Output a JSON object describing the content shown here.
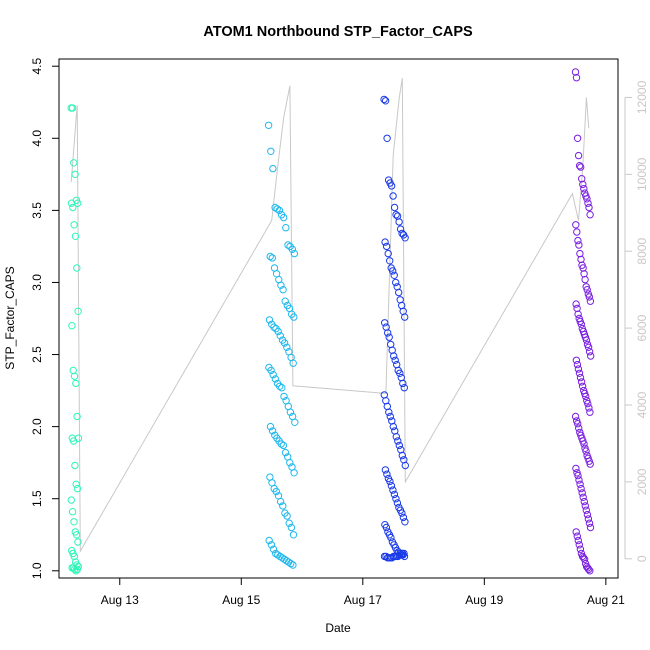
{
  "chart_data": {
    "type": "scatter",
    "title": "ATOM1 Northbound STP_Factor_CAPS",
    "xlabel": "Date",
    "ylabel": "STP_Factor_CAPS",
    "x_ticks": [
      "Aug 13",
      "Aug 15",
      "Aug 17",
      "Aug 19",
      "Aug 21"
    ],
    "x_tick_days": [
      13,
      15,
      17,
      19,
      21
    ],
    "xlim": [
      12.0,
      21.2
    ],
    "ylim": [
      0.95,
      4.55
    ],
    "y_ticks": [
      1.0,
      1.5,
      2.0,
      2.5,
      3.0,
      3.5,
      4.0,
      4.5
    ],
    "y_tick_labels": [
      "1.0",
      "1.5",
      "2.0",
      "2.5",
      "3.0",
      "3.5",
      "4.0",
      "4.5"
    ],
    "y2lim": [
      -500,
      13000
    ],
    "y2_ticks": [
      0,
      2000,
      4000,
      6000,
      8000,
      10000,
      12000
    ],
    "y2_tick_labels": [
      "0",
      "2000",
      "4000",
      "6000",
      "8000",
      "10000",
      "12000"
    ],
    "colors": {
      "series1": "#2ef5b8",
      "series2": "#1eb8ee",
      "series3": "#1a3ae8",
      "series4": "#7a1ee0",
      "secondary_line": "#c8c8c8",
      "frame": "#000000",
      "right_axis": "#c8c8c8"
    },
    "series": [
      {
        "axis": "left",
        "x_range": [
          12.2,
          12.32
        ],
        "values": [
          4.21,
          4.21,
          3.83,
          3.75,
          3.57,
          3.55,
          3.55,
          3.52,
          3.4,
          3.32,
          3.1,
          2.8,
          2.7,
          2.39,
          2.35,
          2.3,
          2.07,
          1.92,
          1.92,
          1.9,
          1.73,
          1.6,
          1.57,
          1.49,
          1.41,
          1.34,
          1.27,
          1.25,
          1.2,
          1.14,
          1.12,
          1.1,
          1.06,
          1.04,
          1.03,
          1.02,
          1.02,
          1.01,
          1.0,
          1.01
        ]
      },
      {
        "axis": "left",
        "x_range": [
          15.45,
          15.88
        ],
        "values": [
          4.09,
          3.91,
          3.79,
          3.52,
          3.51,
          3.5,
          3.47,
          3.45,
          3.38,
          3.26,
          3.25,
          3.23,
          3.2,
          3.18,
          3.17,
          3.1,
          3.06,
          3.02,
          2.98,
          2.95,
          2.87,
          2.84,
          2.82,
          2.78,
          2.76,
          2.74,
          2.71,
          2.69,
          2.68,
          2.66,
          2.63,
          2.6,
          2.58,
          2.55,
          2.52,
          2.48,
          2.44,
          2.41,
          2.39,
          2.36,
          2.33,
          2.3,
          2.28,
          2.27,
          2.21,
          2.18,
          2.14,
          2.1,
          2.07,
          2.03,
          2.0,
          1.97,
          1.94,
          1.92,
          1.9,
          1.88,
          1.87,
          1.82,
          1.79,
          1.75,
          1.72,
          1.68,
          1.65,
          1.61,
          1.57,
          1.55,
          1.52,
          1.48,
          1.45,
          1.4,
          1.38,
          1.33,
          1.3,
          1.25,
          1.21,
          1.18,
          1.15,
          1.12,
          1.11,
          1.1,
          1.09,
          1.08,
          1.07,
          1.06,
          1.05,
          1.04
        ]
      },
      {
        "axis": "left",
        "x_range": [
          17.35,
          17.7
        ],
        "values": [
          4.27,
          4.26,
          4.0,
          3.71,
          3.69,
          3.67,
          3.6,
          3.52,
          3.47,
          3.46,
          3.42,
          3.37,
          3.34,
          3.33,
          3.31,
          3.28,
          3.25,
          3.2,
          3.15,
          3.1,
          3.08,
          3.05,
          3.0,
          2.97,
          2.93,
          2.88,
          2.84,
          2.8,
          2.76,
          2.72,
          2.69,
          2.65,
          2.62,
          2.57,
          2.53,
          2.49,
          2.46,
          2.43,
          2.39,
          2.37,
          2.34,
          2.3,
          2.27,
          2.22,
          2.18,
          2.14,
          2.1,
          2.07,
          2.04,
          2.0,
          1.97,
          1.93,
          1.9,
          1.87,
          1.84,
          1.8,
          1.77,
          1.73,
          1.7,
          1.67,
          1.64,
          1.62,
          1.59,
          1.56,
          1.53,
          1.5,
          1.47,
          1.44,
          1.42,
          1.4,
          1.37,
          1.34,
          1.32,
          1.3,
          1.27,
          1.25,
          1.23,
          1.2,
          1.18,
          1.16,
          1.14,
          1.13,
          1.12,
          1.11,
          1.11,
          1.1,
          1.1,
          1.1,
          1.09,
          1.09,
          1.09,
          1.09,
          1.1,
          1.1,
          1.1,
          1.1,
          1.11,
          1.11,
          1.12,
          1.12
        ]
      },
      {
        "axis": "left",
        "x_range": [
          20.5,
          20.75
        ],
        "values": [
          4.46,
          4.42,
          4.0,
          3.88,
          3.81,
          3.8,
          3.72,
          3.68,
          3.65,
          3.62,
          3.6,
          3.58,
          3.55,
          3.52,
          3.47,
          3.4,
          3.35,
          3.29,
          3.26,
          3.2,
          3.16,
          3.12,
          3.1,
          3.06,
          3.02,
          2.97,
          2.95,
          2.92,
          2.9,
          2.87,
          2.85,
          2.82,
          2.78,
          2.75,
          2.73,
          2.71,
          2.68,
          2.66,
          2.64,
          2.62,
          2.6,
          2.57,
          2.55,
          2.52,
          2.49,
          2.46,
          2.43,
          2.4,
          2.37,
          2.34,
          2.31,
          2.28,
          2.25,
          2.23,
          2.21,
          2.18,
          2.16,
          2.13,
          2.1,
          2.07,
          2.04,
          2.02,
          1.99,
          1.96,
          1.94,
          1.92,
          1.9,
          1.88,
          1.85,
          1.83,
          1.8,
          1.78,
          1.76,
          1.74,
          1.71,
          1.68,
          1.66,
          1.63,
          1.6,
          1.57,
          1.54,
          1.51,
          1.48,
          1.45,
          1.42,
          1.39,
          1.36,
          1.33,
          1.3,
          1.27,
          1.24,
          1.21,
          1.18,
          1.15,
          1.12,
          1.1,
          1.09,
          1.08,
          1.05,
          1.03,
          1.02,
          1.01,
          1.0
        ]
      },
      {
        "axis": "right",
        "x": [
          12.2,
          12.25,
          12.3,
          12.35,
          15.5,
          15.6,
          15.7,
          15.8,
          15.85,
          17.38,
          17.5,
          17.6,
          17.65,
          17.7,
          20.45,
          20.55,
          20.62,
          20.68,
          20.72
        ],
        "values": [
          9800,
          10800,
          11800,
          200,
          8800,
          10200,
          11500,
          12300,
          4500,
          4300,
          10500,
          12000,
          12500,
          2000,
          9500,
          8800,
          10200,
          12000,
          11200
        ]
      }
    ]
  }
}
